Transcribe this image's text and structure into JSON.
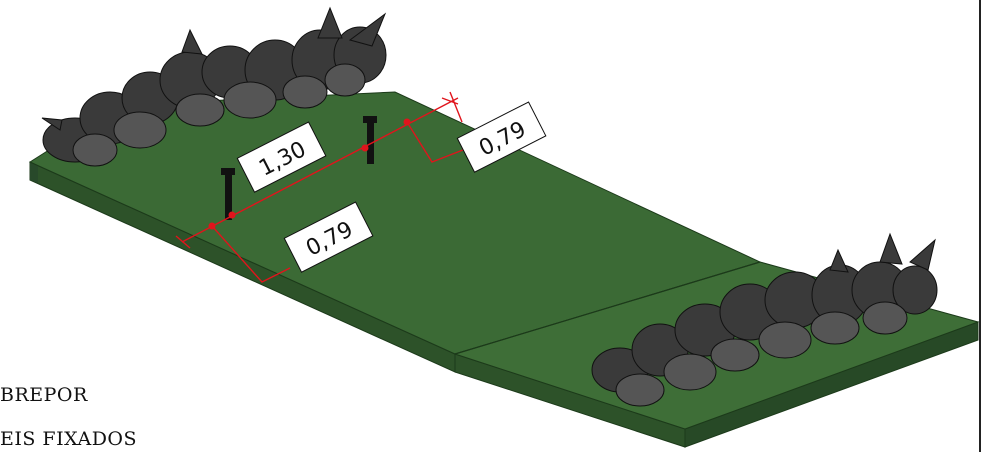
{
  "dimensions": {
    "spacing": "1,30",
    "offset_left": "0,79",
    "offset_right": "0,79"
  },
  "notes": {
    "line1": "BREPOR",
    "line2": "EIS FIXADOS"
  },
  "colors": {
    "lawn_top": "#3b6a35",
    "lawn_side": "#2d5229",
    "lawn_edge": "#1c3a1a",
    "dimension": "#e0141c",
    "label_bg": "#ffffff",
    "foliage": "#3a3a3a"
  }
}
